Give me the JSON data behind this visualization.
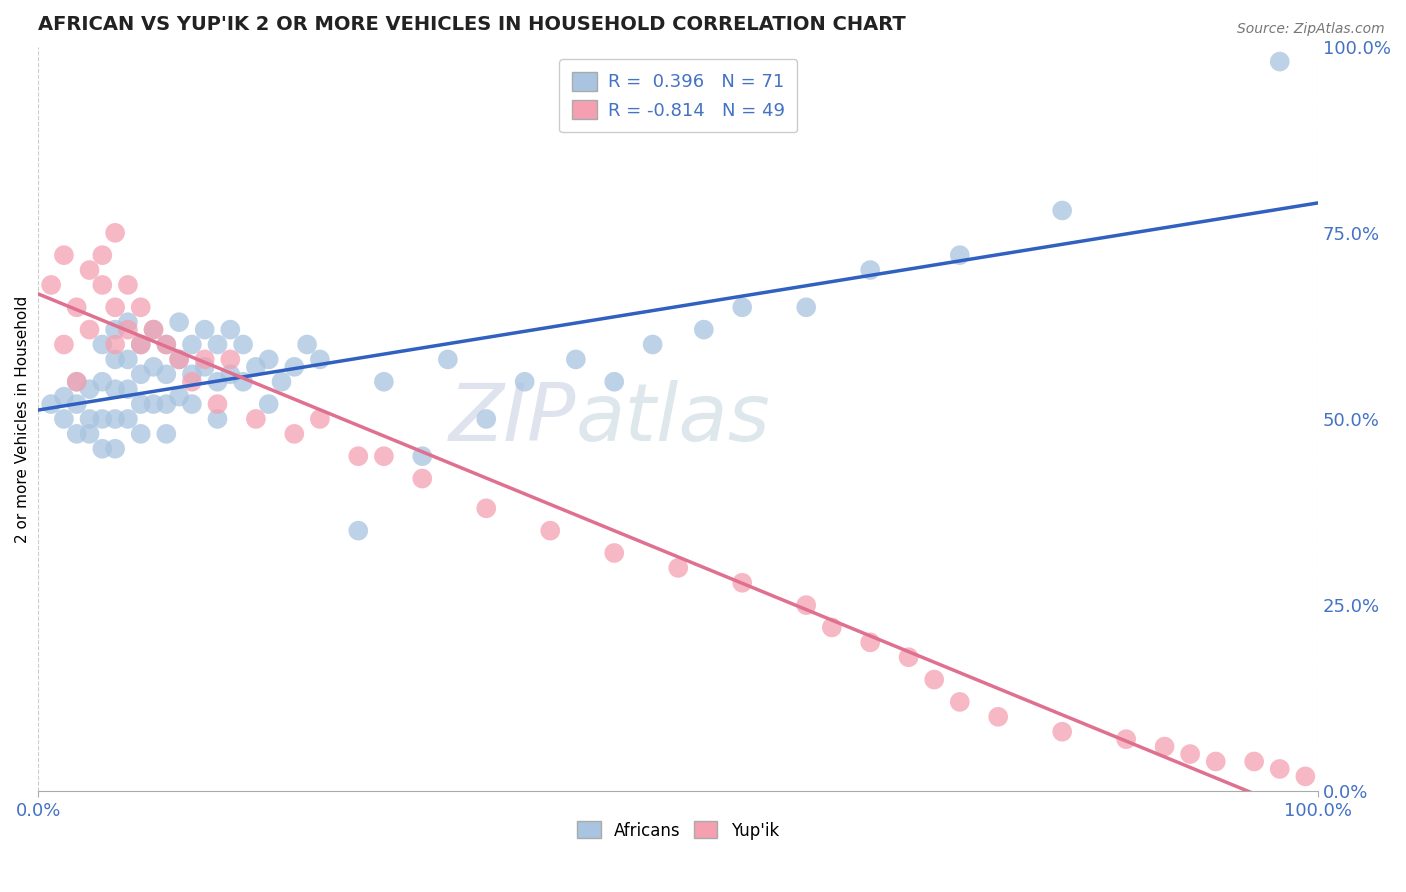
{
  "title": "AFRICAN VS YUP'IK 2 OR MORE VEHICLES IN HOUSEHOLD CORRELATION CHART",
  "source_text": "Source: ZipAtlas.com",
  "ylabel": "2 or more Vehicles in Household",
  "xlim": [
    0,
    1.0
  ],
  "ylim": [
    0,
    1.0
  ],
  "africans_R": 0.396,
  "africans_N": 71,
  "yupik_R": -0.814,
  "yupik_N": 49,
  "watermark_ZIP": "ZIP",
  "watermark_atlas": "atlas",
  "africans_color": "#a8c4e0",
  "yupik_color": "#f4a0b0",
  "africans_line_color": "#3060c0",
  "yupik_line_color": "#e07090",
  "grid_color": "#c0c0c0",
  "axis_label_color": "#4472c4",
  "right_ytick_labels": [
    "100.0%",
    "75.0%",
    "50.0%",
    "25.0%",
    "0.0%"
  ],
  "right_ytick_vals": [
    1.0,
    0.75,
    0.5,
    0.25,
    0.0
  ],
  "africans_x": [
    0.01,
    0.02,
    0.02,
    0.03,
    0.03,
    0.03,
    0.04,
    0.04,
    0.04,
    0.05,
    0.05,
    0.05,
    0.05,
    0.06,
    0.06,
    0.06,
    0.06,
    0.06,
    0.07,
    0.07,
    0.07,
    0.07,
    0.08,
    0.08,
    0.08,
    0.08,
    0.09,
    0.09,
    0.09,
    0.1,
    0.1,
    0.1,
    0.1,
    0.11,
    0.11,
    0.11,
    0.12,
    0.12,
    0.12,
    0.13,
    0.13,
    0.14,
    0.14,
    0.14,
    0.15,
    0.15,
    0.16,
    0.16,
    0.17,
    0.18,
    0.18,
    0.19,
    0.2,
    0.21,
    0.22,
    0.25,
    0.27,
    0.3,
    0.32,
    0.35,
    0.38,
    0.42,
    0.45,
    0.48,
    0.52,
    0.55,
    0.6,
    0.65,
    0.72,
    0.8,
    0.97
  ],
  "africans_y": [
    0.52,
    0.5,
    0.53,
    0.48,
    0.52,
    0.55,
    0.5,
    0.54,
    0.48,
    0.6,
    0.55,
    0.5,
    0.46,
    0.62,
    0.58,
    0.54,
    0.5,
    0.46,
    0.63,
    0.58,
    0.54,
    0.5,
    0.6,
    0.56,
    0.52,
    0.48,
    0.62,
    0.57,
    0.52,
    0.6,
    0.56,
    0.52,
    0.48,
    0.63,
    0.58,
    0.53,
    0.6,
    0.56,
    0.52,
    0.62,
    0.57,
    0.6,
    0.55,
    0.5,
    0.62,
    0.56,
    0.6,
    0.55,
    0.57,
    0.58,
    0.52,
    0.55,
    0.57,
    0.6,
    0.58,
    0.35,
    0.55,
    0.45,
    0.58,
    0.5,
    0.55,
    0.58,
    0.55,
    0.6,
    0.62,
    0.65,
    0.65,
    0.7,
    0.72,
    0.78,
    0.98
  ],
  "yupik_x": [
    0.01,
    0.02,
    0.02,
    0.03,
    0.03,
    0.04,
    0.04,
    0.05,
    0.05,
    0.06,
    0.06,
    0.06,
    0.07,
    0.07,
    0.08,
    0.08,
    0.09,
    0.1,
    0.11,
    0.12,
    0.13,
    0.14,
    0.15,
    0.17,
    0.2,
    0.22,
    0.25,
    0.27,
    0.3,
    0.35,
    0.4,
    0.45,
    0.5,
    0.55,
    0.6,
    0.62,
    0.65,
    0.68,
    0.7,
    0.72,
    0.75,
    0.8,
    0.85,
    0.88,
    0.9,
    0.92,
    0.95,
    0.97,
    0.99
  ],
  "yupik_y": [
    0.68,
    0.72,
    0.6,
    0.65,
    0.55,
    0.7,
    0.62,
    0.68,
    0.72,
    0.65,
    0.6,
    0.75,
    0.62,
    0.68,
    0.6,
    0.65,
    0.62,
    0.6,
    0.58,
    0.55,
    0.58,
    0.52,
    0.58,
    0.5,
    0.48,
    0.5,
    0.45,
    0.45,
    0.42,
    0.38,
    0.35,
    0.32,
    0.3,
    0.28,
    0.25,
    0.22,
    0.2,
    0.18,
    0.15,
    0.12,
    0.1,
    0.08,
    0.07,
    0.06,
    0.05,
    0.04,
    0.04,
    0.03,
    0.02
  ]
}
